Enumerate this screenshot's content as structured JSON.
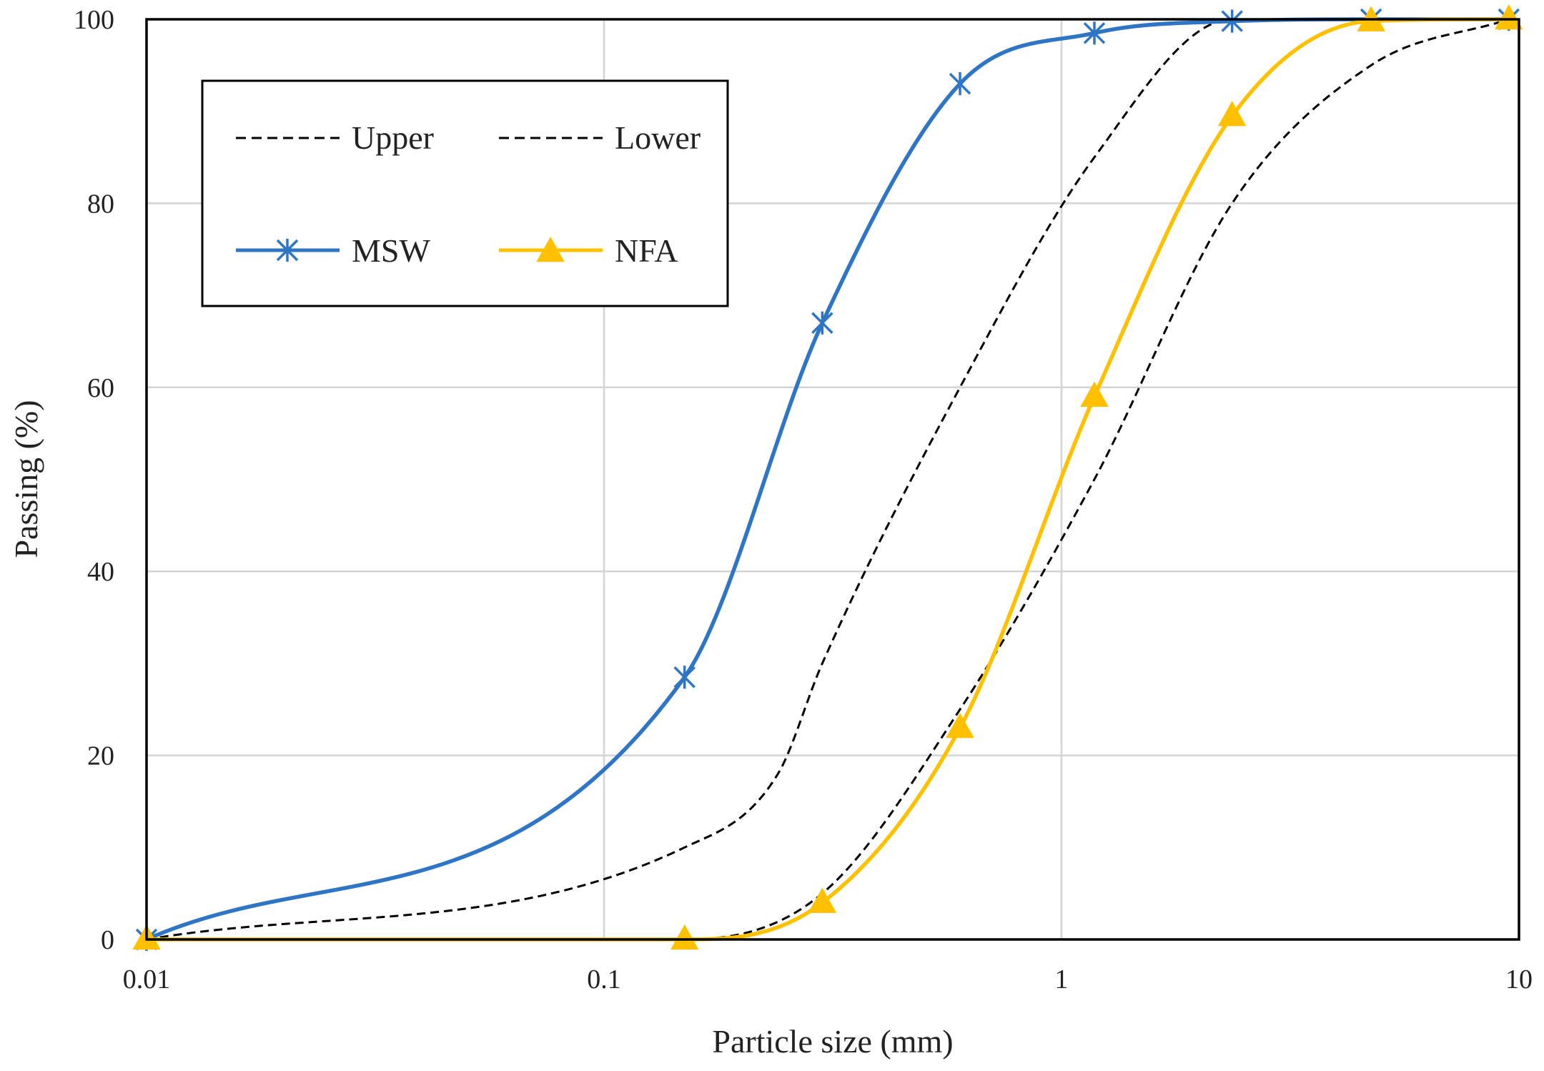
{
  "chart_data": {
    "type": "line",
    "title": "",
    "xlabel": "Particle size (mm)",
    "ylabel": "Passing (%)",
    "xscale": "log",
    "xlim": [
      0.01,
      10
    ],
    "ylim": [
      0,
      100
    ],
    "xticks": [
      {
        "value": 0.01,
        "label": "0.01"
      },
      {
        "value": 0.1,
        "label": "0.1"
      },
      {
        "value": 1,
        "label": "1"
      },
      {
        "value": 10,
        "label": "10"
      }
    ],
    "yticks": [
      {
        "value": 0,
        "label": "0"
      },
      {
        "value": 20,
        "label": "20"
      },
      {
        "value": 40,
        "label": "40"
      },
      {
        "value": 60,
        "label": "60"
      },
      {
        "value": 80,
        "label": "80"
      },
      {
        "value": 100,
        "label": "100"
      }
    ],
    "grid": true,
    "legend_position": "top-left",
    "series": [
      {
        "name": "Upper",
        "style": "dashed",
        "color": "#000000",
        "marker": "none",
        "x": [
          0.01,
          0.15,
          0.24,
          0.3,
          0.6,
          1.18,
          2.36,
          4.75,
          9.5
        ],
        "y": [
          0,
          10,
          18,
          30,
          60,
          85,
          100,
          100,
          100
        ]
      },
      {
        "name": "Lower",
        "style": "dashed",
        "color": "#000000",
        "marker": "none",
        "x": [
          0.01,
          0.15,
          0.3,
          0.6,
          1.18,
          2.36,
          4.75,
          9.5
        ],
        "y": [
          0,
          0,
          5,
          25,
          50,
          80,
          95,
          100
        ]
      },
      {
        "name": "MSW",
        "style": "solid",
        "color": "#2E75C6",
        "marker": "asterisk",
        "x": [
          0.01,
          0.15,
          0.3,
          0.6,
          1.18,
          2.36,
          4.75,
          9.5
        ],
        "y": [
          0,
          28.5,
          67,
          93,
          98.5,
          99.8,
          100,
          100
        ]
      },
      {
        "name": "NFA",
        "style": "solid",
        "color": "#FFC000",
        "marker": "triangle",
        "x": [
          0.01,
          0.15,
          0.3,
          0.6,
          1.18,
          2.36,
          4.75,
          9.5
        ],
        "y": [
          0,
          0,
          4,
          23,
          59,
          89.5,
          99.8,
          100
        ]
      }
    ],
    "legend": {
      "items": [
        {
          "label": "Upper",
          "series": "Upper"
        },
        {
          "label": "Lower",
          "series": "Lower"
        },
        {
          "label": "MSW",
          "series": "MSW"
        },
        {
          "label": "NFA",
          "series": "NFA"
        }
      ]
    }
  }
}
